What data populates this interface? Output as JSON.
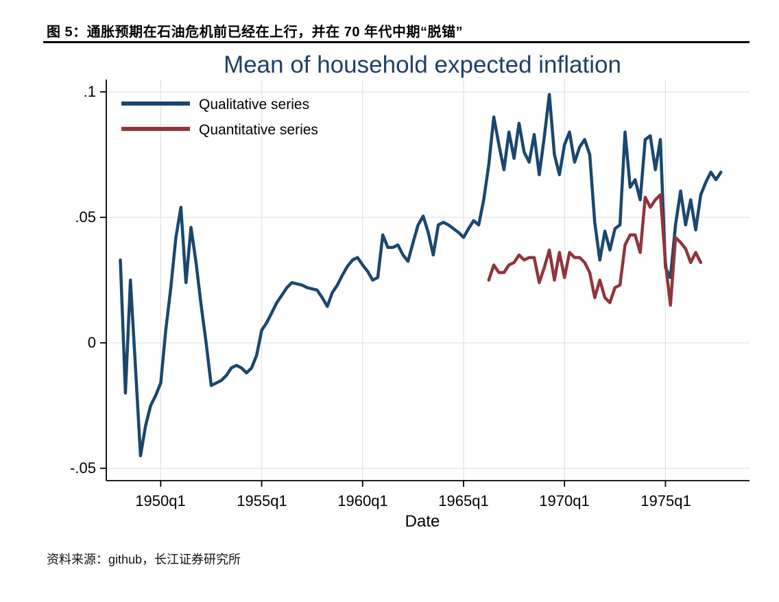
{
  "page": {
    "header": "图 5：通胀预期在石油危机前已经在上行，并在 70 年代中期“脱锚”",
    "source": "资料来源：github，长江证券研究所"
  },
  "chart_data": {
    "type": "line",
    "title": "Mean of household expected inflation",
    "xlabel": "Date",
    "x_unit": "quarterly",
    "x_start": "1948q1",
    "x_end": "1977q4",
    "ylim": [
      -0.05,
      0.1
    ],
    "grid": true,
    "legend_position": "top-left",
    "axis_color": "#000000",
    "grid_color": "#e3e3e3",
    "y_ticks": [
      {
        "label": ".1",
        "value": 0.1
      },
      {
        "label": ".05",
        "value": 0.05
      },
      {
        "label": "0",
        "value": 0.0
      },
      {
        "label": "-.05",
        "value": -0.05
      }
    ],
    "x_ticks": [
      {
        "label": "1950q1",
        "q": 8
      },
      {
        "label": "1955q1",
        "q": 28
      },
      {
        "label": "1960q1",
        "q": 48
      },
      {
        "label": "1965q1",
        "q": 68
      },
      {
        "label": "1970q1",
        "q": 88
      },
      {
        "label": "1975q1",
        "q": 108
      }
    ],
    "series": [
      {
        "name": "Qualitative series",
        "color": "#1a476f",
        "start": "1948q1",
        "start_index": 0,
        "values": [
          0.033,
          -0.02,
          0.025,
          -0.01,
          -0.045,
          -0.033,
          -0.025,
          -0.021,
          -0.016,
          0.005,
          0.022,
          0.042,
          0.054,
          0.024,
          0.046,
          0.032,
          0.015,
          0.0,
          -0.017,
          -0.016,
          -0.015,
          -0.013,
          -0.01,
          -0.009,
          -0.01,
          -0.012,
          -0.01,
          -0.005,
          0.005,
          0.008,
          0.012,
          0.016,
          0.019,
          0.022,
          0.024,
          0.0235,
          0.023,
          0.022,
          0.0215,
          0.021,
          0.018,
          0.0145,
          0.02,
          0.023,
          0.027,
          0.0305,
          0.033,
          0.034,
          0.031,
          0.0285,
          0.025,
          0.026,
          0.043,
          0.038,
          0.038,
          0.039,
          0.035,
          0.0325,
          0.04,
          0.047,
          0.0505,
          0.044,
          0.035,
          0.047,
          0.048,
          0.047,
          0.0455,
          0.044,
          0.042,
          0.0455,
          0.0487,
          0.047,
          0.057,
          0.071,
          0.09,
          0.079,
          0.069,
          0.084,
          0.0735,
          0.0875,
          0.076,
          0.072,
          0.083,
          0.067,
          0.082,
          0.099,
          0.075,
          0.067,
          0.079,
          0.084,
          0.072,
          0.078,
          0.081,
          0.075,
          0.048,
          0.033,
          0.0445,
          0.037,
          0.0455,
          0.047,
          0.084,
          0.062,
          0.065,
          0.057,
          0.081,
          0.0825,
          0.069,
          0.081,
          0.03,
          0.026,
          0.047,
          0.0605,
          0.047,
          0.057,
          0.045,
          0.059,
          0.064,
          0.068,
          0.065,
          0.068
        ]
      },
      {
        "name": "Quantitative series",
        "color": "#90353b",
        "start": "1966q2",
        "start_index": 73,
        "values": [
          0.025,
          0.031,
          0.028,
          0.028,
          0.031,
          0.032,
          0.035,
          0.033,
          0.034,
          0.034,
          0.024,
          0.03,
          0.037,
          0.025,
          0.036,
          0.026,
          0.036,
          0.034,
          0.034,
          0.032,
          0.028,
          0.018,
          0.025,
          0.018,
          0.016,
          0.022,
          0.023,
          0.039,
          0.043,
          0.043,
          0.036,
          0.058,
          0.054,
          0.057,
          0.059,
          0.032,
          0.015,
          0.042,
          0.04,
          0.0375,
          0.032,
          0.036,
          0.032
        ]
      }
    ]
  }
}
